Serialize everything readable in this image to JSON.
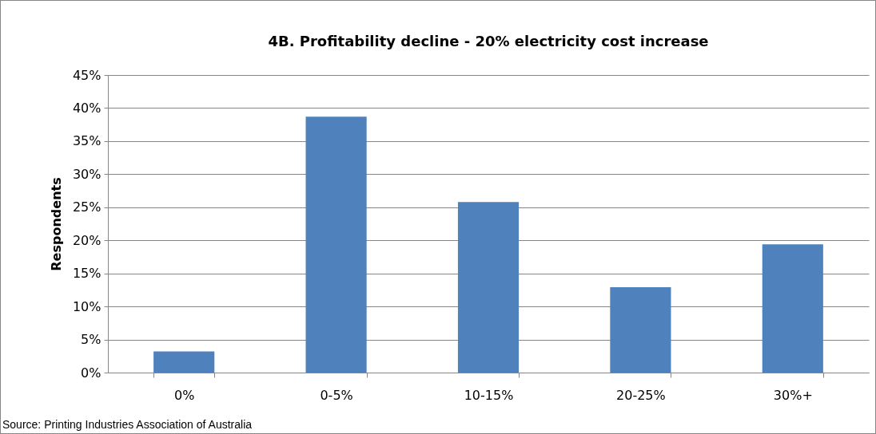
{
  "chart_data": {
    "type": "bar",
    "title": "4B. Profitability decline - 20% electricity cost increase",
    "ylabel": "Respondents",
    "categories": [
      "0%",
      "0-5%",
      "10-15%",
      "20-25%",
      "30%+"
    ],
    "values": [
      3.2,
      38.7,
      25.8,
      12.9,
      19.4
    ],
    "color": "#4f81bd",
    "ylim": [
      0,
      45
    ],
    "yticks": [
      {
        "value": 0,
        "label": "0%"
      },
      {
        "value": 5,
        "label": "5%"
      },
      {
        "value": 10,
        "label": "10%"
      },
      {
        "value": 15,
        "label": "15%"
      },
      {
        "value": 20,
        "label": "20%"
      },
      {
        "value": 25,
        "label": "25%"
      },
      {
        "value": 30,
        "label": "30%"
      },
      {
        "value": 35,
        "label": "35%"
      },
      {
        "value": 40,
        "label": "40%"
      },
      {
        "value": 45,
        "label": "45%"
      }
    ],
    "grid": "y",
    "annotations": [
      "Source: Printing Industries Association of Australia"
    ]
  }
}
